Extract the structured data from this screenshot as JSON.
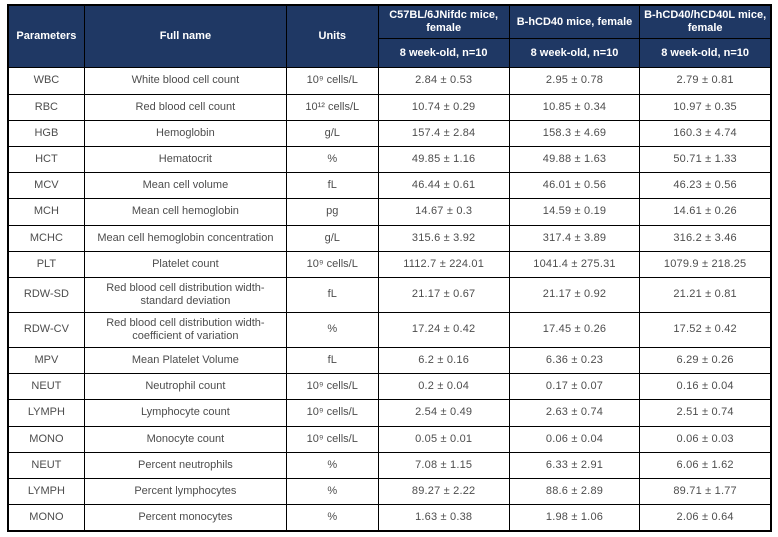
{
  "header": {
    "parameters": "Parameters",
    "full_name": "Full name",
    "units": "Units",
    "groups": [
      {
        "name": "C57BL/6JNifdc mice, female",
        "sub": "8 week-old, n=10"
      },
      {
        "name": "B-hCD40 mice, female",
        "sub": "8 week-old, n=10"
      },
      {
        "name": "B-hCD40/hCD40L mice, female",
        "sub": "8 week-old, n=10"
      }
    ]
  },
  "colors": {
    "header_bg": "#1f3864",
    "header_text": "#ffffff",
    "body_text": "#4d4d4d",
    "border": "#000000"
  },
  "rows": [
    {
      "param": "WBC",
      "full_name": "White blood cell count",
      "units": "10⁹ cells/L",
      "values": [
        "2.84 ± 0.53",
        "2.95 ± 0.78",
        "2.79 ± 0.81"
      ]
    },
    {
      "param": "RBC",
      "full_name": "Red blood cell count",
      "units": "10¹² cells/L",
      "values": [
        "10.74 ± 0.29",
        "10.85 ± 0.34",
        "10.97 ± 0.35"
      ]
    },
    {
      "param": "HGB",
      "full_name": "Hemoglobin",
      "units": "g/L",
      "values": [
        "157.4 ± 2.84",
        "158.3 ± 4.69",
        "160.3 ± 4.74"
      ]
    },
    {
      "param": "HCT",
      "full_name": "Hematocrit",
      "units": "%",
      "values": [
        "49.85 ± 1.16",
        "49.88 ± 1.63",
        "50.71 ± 1.33"
      ]
    },
    {
      "param": "MCV",
      "full_name": "Mean cell volume",
      "units": "fL",
      "values": [
        "46.44 ± 0.61",
        "46.01 ± 0.56",
        "46.23 ± 0.56"
      ]
    },
    {
      "param": "MCH",
      "full_name": "Mean cell hemoglobin",
      "units": "pg",
      "values": [
        "14.67 ± 0.3",
        "14.59 ± 0.19",
        "14.61 ± 0.26"
      ]
    },
    {
      "param": "MCHC",
      "full_name": "Mean cell hemoglobin concentration",
      "units": "g/L",
      "values": [
        "315.6 ± 3.92",
        "317.4 ± 3.89",
        "316.2 ± 3.46"
      ]
    },
    {
      "param": "PLT",
      "full_name": "Platelet count",
      "units": "10⁹ cells/L",
      "values": [
        "1112.7 ± 224.01",
        "1041.4 ± 275.31",
        "1079.9 ± 218.25"
      ]
    },
    {
      "param": "RDW-SD",
      "full_name": "Red blood cell distribution width-standard deviation",
      "units": "fL",
      "values": [
        "21.17 ± 0.67",
        "21.17 ± 0.92",
        "21.21 ± 0.81"
      ]
    },
    {
      "param": "RDW-CV",
      "full_name": "Red blood cell distribution width-coefficient of variation",
      "units": "%",
      "values": [
        "17.24 ± 0.42",
        "17.45 ± 0.26",
        "17.52 ± 0.42"
      ]
    },
    {
      "param": "MPV",
      "full_name": "Mean Platelet Volume",
      "units": "fL",
      "values": [
        "6.2 ± 0.16",
        "6.36 ± 0.23",
        "6.29 ± 0.26"
      ]
    },
    {
      "param": "NEUT",
      "full_name": "Neutrophil count",
      "units": "10⁹ cells/L",
      "values": [
        "0.2 ± 0.04",
        "0.17 ± 0.07",
        "0.16 ± 0.04"
      ]
    },
    {
      "param": "LYMPH",
      "full_name": "Lymphocyte count",
      "units": "10⁹ cells/L",
      "values": [
        "2.54 ± 0.49",
        "2.63 ± 0.74",
        "2.51 ± 0.74"
      ]
    },
    {
      "param": "MONO",
      "full_name": "Monocyte count",
      "units": "10⁹ cells/L",
      "values": [
        "0.05 ± 0.01",
        "0.06 ± 0.04",
        "0.06 ± 0.03"
      ]
    },
    {
      "param": "NEUT",
      "full_name": "Percent neutrophils",
      "units": "%",
      "values": [
        "7.08 ± 1.15",
        "6.33 ± 2.91",
        "6.06 ± 1.62"
      ]
    },
    {
      "param": "LYMPH",
      "full_name": "Percent lymphocytes",
      "units": "%",
      "values": [
        "89.27 ± 2.22",
        "88.6 ± 2.89",
        "89.71 ± 1.77"
      ]
    },
    {
      "param": "MONO",
      "full_name": "Percent monocytes",
      "units": "%",
      "values": [
        "1.63 ± 0.38",
        "1.98 ± 1.06",
        "2.06 ± 0.64"
      ]
    }
  ]
}
